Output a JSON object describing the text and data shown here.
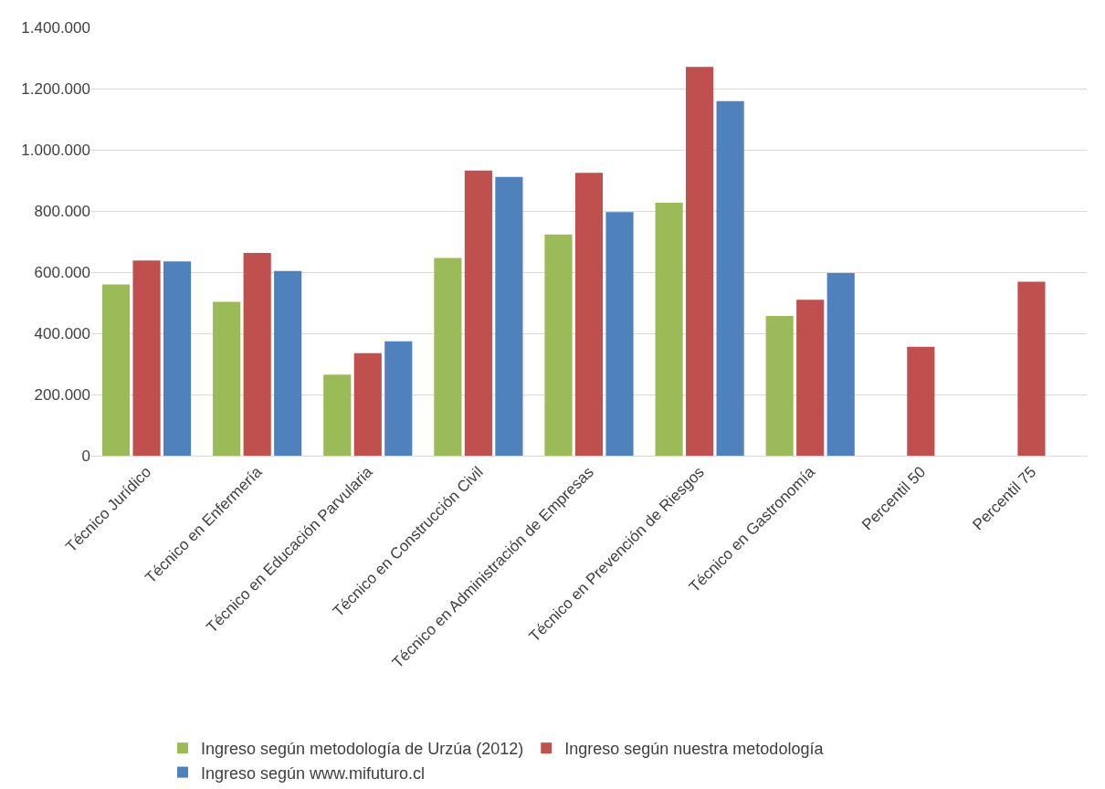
{
  "chart_data": {
    "type": "bar",
    "categories": [
      "Técnico Jurídico",
      "Técnico en Enfermería",
      "Técnico en Educación Parvularia",
      "Técnico en Construcción Civil",
      "Técnico en Administración de Empresas",
      "Técnico en Prevención de Riesgos",
      "Técnico en Gastronomía",
      "Percentil 50",
      "Percentil 75"
    ],
    "series": [
      {
        "name": "Ingreso según metodología de Urzúa (2012)",
        "color": "#9bbb59",
        "values": [
          560000,
          503000,
          265000,
          646000,
          723000,
          827000,
          457000,
          null,
          null
        ]
      },
      {
        "name": "Ingreso según nuestra metodología",
        "color": "#c0504d",
        "values": [
          638000,
          663000,
          335000,
          932000,
          925000,
          1271000,
          510000,
          356000,
          569000
        ]
      },
      {
        "name": "Ingreso según www.mifuturo.cl",
        "color": "#4f81bd",
        "values": [
          635000,
          604000,
          374000,
          911000,
          796000,
          1159000,
          597000,
          null,
          null
        ]
      }
    ],
    "ylim": [
      0,
      1400000
    ],
    "yticks": [
      {
        "value": 0,
        "label": "0"
      },
      {
        "value": 200000,
        "label": "200.000"
      },
      {
        "value": 400000,
        "label": "400.000"
      },
      {
        "value": 600000,
        "label": "600.000"
      },
      {
        "value": 800000,
        "label": "800.000"
      },
      {
        "value": 1000000,
        "label": "1.000.000"
      },
      {
        "value": 1200000,
        "label": "1.200.000"
      },
      {
        "value": 1400000,
        "label": "1.400.000"
      }
    ],
    "grid": "y",
    "legend": "bottom"
  }
}
